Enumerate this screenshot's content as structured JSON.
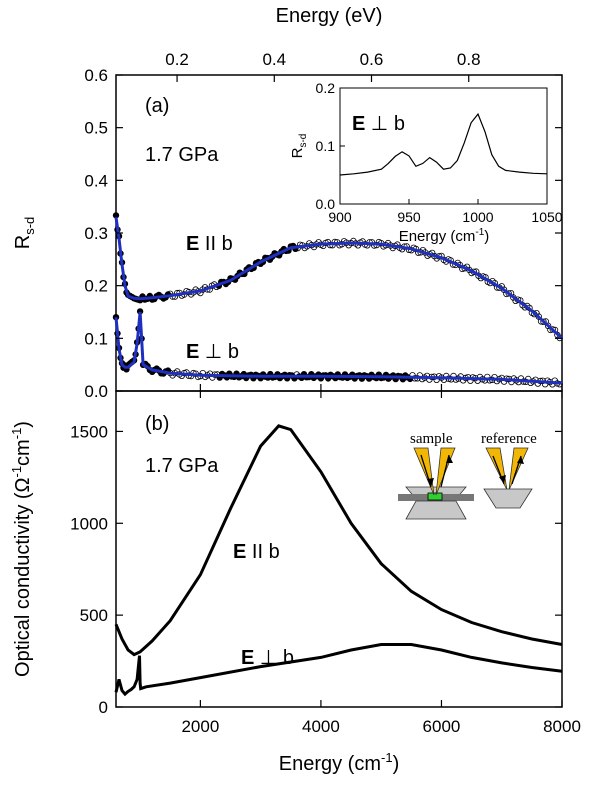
{
  "chart_data": [
    {
      "panel_label": "(a)",
      "type": "line",
      "pressure_label": "1.7 GPa",
      "xlabel": "Energy (cm",
      "xlabel_sup": "-1",
      "xlim": [
        600,
        8000
      ],
      "x_ticks": [
        2000,
        4000,
        6000,
        8000
      ],
      "ylabel": "R",
      "ylabel_sub": "s-d",
      "ylim": [
        0.0,
        0.6
      ],
      "y_ticks": [
        "0.0",
        "0.1",
        "0.2",
        "0.3",
        "0.4",
        "0.5",
        "0.6"
      ],
      "top_axis": {
        "label": "Energy (eV)",
        "ticks": [
          "0.2",
          "0.4",
          "0.6",
          "0.8"
        ],
        "tick_values_ev": [
          0.2,
          0.4,
          0.6,
          0.8
        ],
        "cm_per_ev": 8065.5
      },
      "series": [
        {
          "label_bold": "E",
          "label_rest": " II b",
          "fit_color": "#1f2fbf",
          "x": [
            600,
            650,
            700,
            750,
            800,
            900,
            1000,
            1200,
            1500,
            2000,
            2500,
            3000,
            3500,
            4000,
            4500,
            5000,
            5500,
            6000,
            6500,
            7000,
            7500,
            8000
          ],
          "y": [
            0.33,
            0.29,
            0.24,
            0.2,
            0.18,
            0.176,
            0.175,
            0.177,
            0.181,
            0.19,
            0.21,
            0.245,
            0.272,
            0.279,
            0.281,
            0.279,
            0.27,
            0.253,
            0.228,
            0.195,
            0.152,
            0.1
          ]
        },
        {
          "label_bold": "E",
          "label_rest": " ⊥ b",
          "fit_color": "#1f2fbf",
          "x": [
            600,
            650,
            700,
            750,
            800,
            900,
            950,
            1000,
            1050,
            1200,
            1500,
            2000,
            3000,
            4000,
            5000,
            6000,
            7000,
            8000
          ],
          "y": [
            0.14,
            0.08,
            0.05,
            0.045,
            0.045,
            0.055,
            0.09,
            0.15,
            0.05,
            0.04,
            0.034,
            0.03,
            0.028,
            0.028,
            0.027,
            0.025,
            0.022,
            0.015
          ]
        }
      ],
      "inset": {
        "annotation_bold": "E",
        "annotation_rest": " ⊥ b",
        "xlabel": "Energy (cm",
        "xlabel_sup": "-1",
        "ylabel": "R",
        "ylabel_sub": "s-d",
        "xlim": [
          900,
          1050
        ],
        "ylim": [
          0.0,
          0.2
        ],
        "x_ticks": [
          "900",
          "950",
          "1000",
          "1050"
        ],
        "y_ticks": [
          "0.0",
          "0.1",
          "0.2"
        ],
        "x": [
          900,
          910,
          920,
          930,
          935,
          940,
          945,
          950,
          955,
          960,
          965,
          970,
          975,
          980,
          985,
          990,
          995,
          1000,
          1005,
          1010,
          1015,
          1020,
          1030,
          1040,
          1050
        ],
        "y": [
          0.05,
          0.052,
          0.055,
          0.06,
          0.07,
          0.082,
          0.09,
          0.083,
          0.065,
          0.07,
          0.08,
          0.072,
          0.06,
          0.062,
          0.075,
          0.105,
          0.14,
          0.155,
          0.125,
          0.085,
          0.065,
          0.058,
          0.055,
          0.053,
          0.052
        ]
      }
    },
    {
      "panel_label": "(b)",
      "type": "line",
      "pressure_label": "1.7 GPa",
      "xlabel": "Energy (cm",
      "xlabel_sup": "-1",
      "xlim": [
        600,
        8000
      ],
      "x_ticks": [
        2000,
        4000,
        6000,
        8000
      ],
      "ylabel": "Optical conductivity (Ω",
      "ylabel_sup1": "-1",
      "ylabel_mid": "cm",
      "ylabel_sup2": "-1",
      "ylabel_end": ")",
      "ylim": [
        0,
        1720
      ],
      "y_ticks": [
        0,
        500,
        1000,
        1500
      ],
      "series": [
        {
          "label_bold": "E",
          "label_rest": " II b",
          "x": [
            600,
            700,
            800,
            900,
            1000,
            1200,
            1500,
            2000,
            2500,
            3000,
            3300,
            3500,
            4000,
            4500,
            5000,
            5500,
            6000,
            6500,
            7000,
            7500,
            8000
          ],
          "y": [
            450,
            370,
            310,
            285,
            300,
            360,
            470,
            720,
            1080,
            1420,
            1530,
            1510,
            1280,
            1000,
            780,
            630,
            530,
            460,
            410,
            370,
            340
          ]
        },
        {
          "label_bold": "E",
          "label_rest": " ⊥ b",
          "x": [
            600,
            650,
            700,
            750,
            800,
            850,
            900,
            950,
            990,
            1000,
            1010,
            1100,
            1500,
            2000,
            3000,
            4000,
            4500,
            5000,
            5500,
            6000,
            6500,
            7000,
            7500,
            8000
          ],
          "y": [
            80,
            150,
            90,
            70,
            85,
            95,
            110,
            150,
            280,
            130,
            100,
            110,
            130,
            160,
            220,
            270,
            310,
            340,
            340,
            310,
            270,
            240,
            215,
            195
          ]
        }
      ],
      "schematic": {
        "sample_label": "sample",
        "reference_label": "reference",
        "beam_color": "#f2b705",
        "sample_color": "#2fd12f"
      }
    }
  ]
}
